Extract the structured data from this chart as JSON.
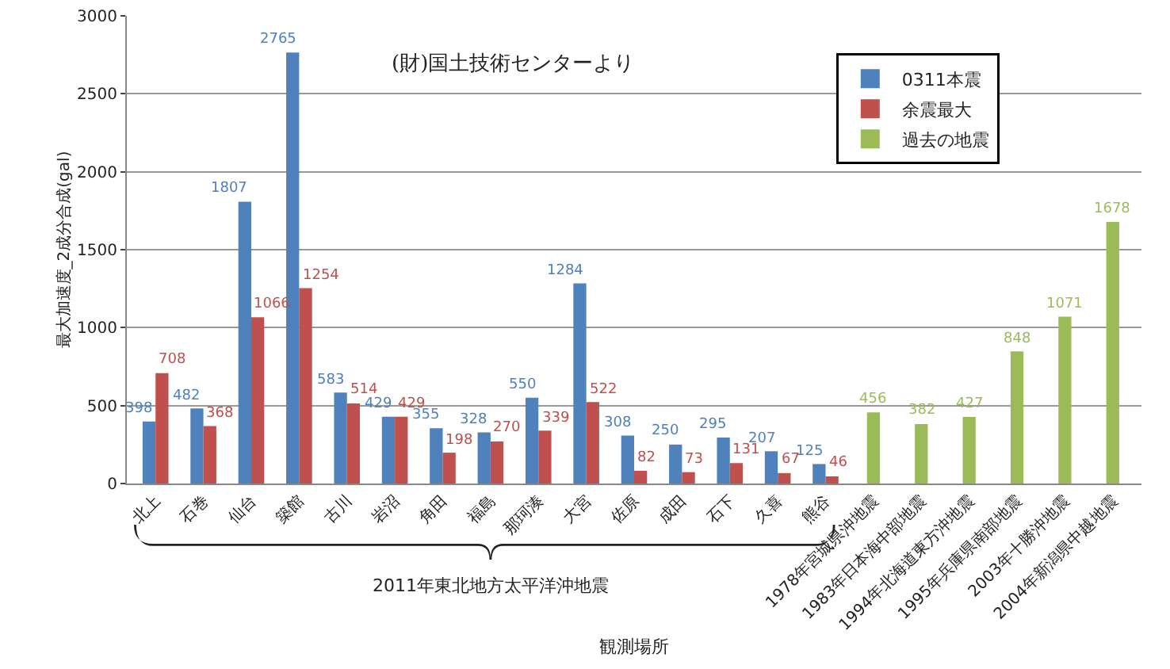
{
  "chart_data": {
    "type": "bar",
    "categories": [
      "北上",
      "石巻",
      "仙台",
      "築館",
      "古川",
      "岩沼",
      "角田",
      "福島",
      "那珂湊",
      "大宮",
      "佐原",
      "成田",
      "石下",
      "久喜",
      "熊谷",
      "1978年宮城県沖地震",
      "1983年日本海中部地震",
      "1994年北海道東方沖地震",
      "1995年兵庫県南部地震",
      "2003年十勝沖地震",
      "2004年新潟県中越地震"
    ],
    "series": [
      {
        "name": "0311本震",
        "color": "#4f81bd",
        "values": [
          398,
          482,
          1807,
          2765,
          583,
          429,
          355,
          328,
          550,
          1284,
          308,
          250,
          295,
          207,
          125,
          null,
          null,
          null,
          null,
          null,
          null
        ]
      },
      {
        "name": "余震最大",
        "color": "#c0504d",
        "values": [
          708,
          368,
          1066,
          1254,
          514,
          429,
          198,
          270,
          339,
          522,
          82,
          73,
          131,
          67,
          46,
          null,
          null,
          null,
          null,
          null,
          null
        ]
      },
      {
        "name": "過去の地震",
        "color": "#9bbb59",
        "values": [
          null,
          null,
          null,
          null,
          null,
          null,
          null,
          null,
          null,
          null,
          null,
          null,
          null,
          null,
          null,
          456,
          382,
          427,
          848,
          1071,
          1678
        ]
      }
    ],
    "xlabel": "観測場所",
    "ylabel": "最大加速度_2成分合成(gal)",
    "ylim": [
      0,
      3000
    ],
    "yticks": [
      0,
      500,
      1000,
      1500,
      2000,
      2500,
      3000
    ],
    "grid": "y",
    "legend": "top right",
    "data_labels": true,
    "annotations": [
      "(財)国土技術センターより",
      "2011年東北地方太平洋沖地震"
    ]
  }
}
